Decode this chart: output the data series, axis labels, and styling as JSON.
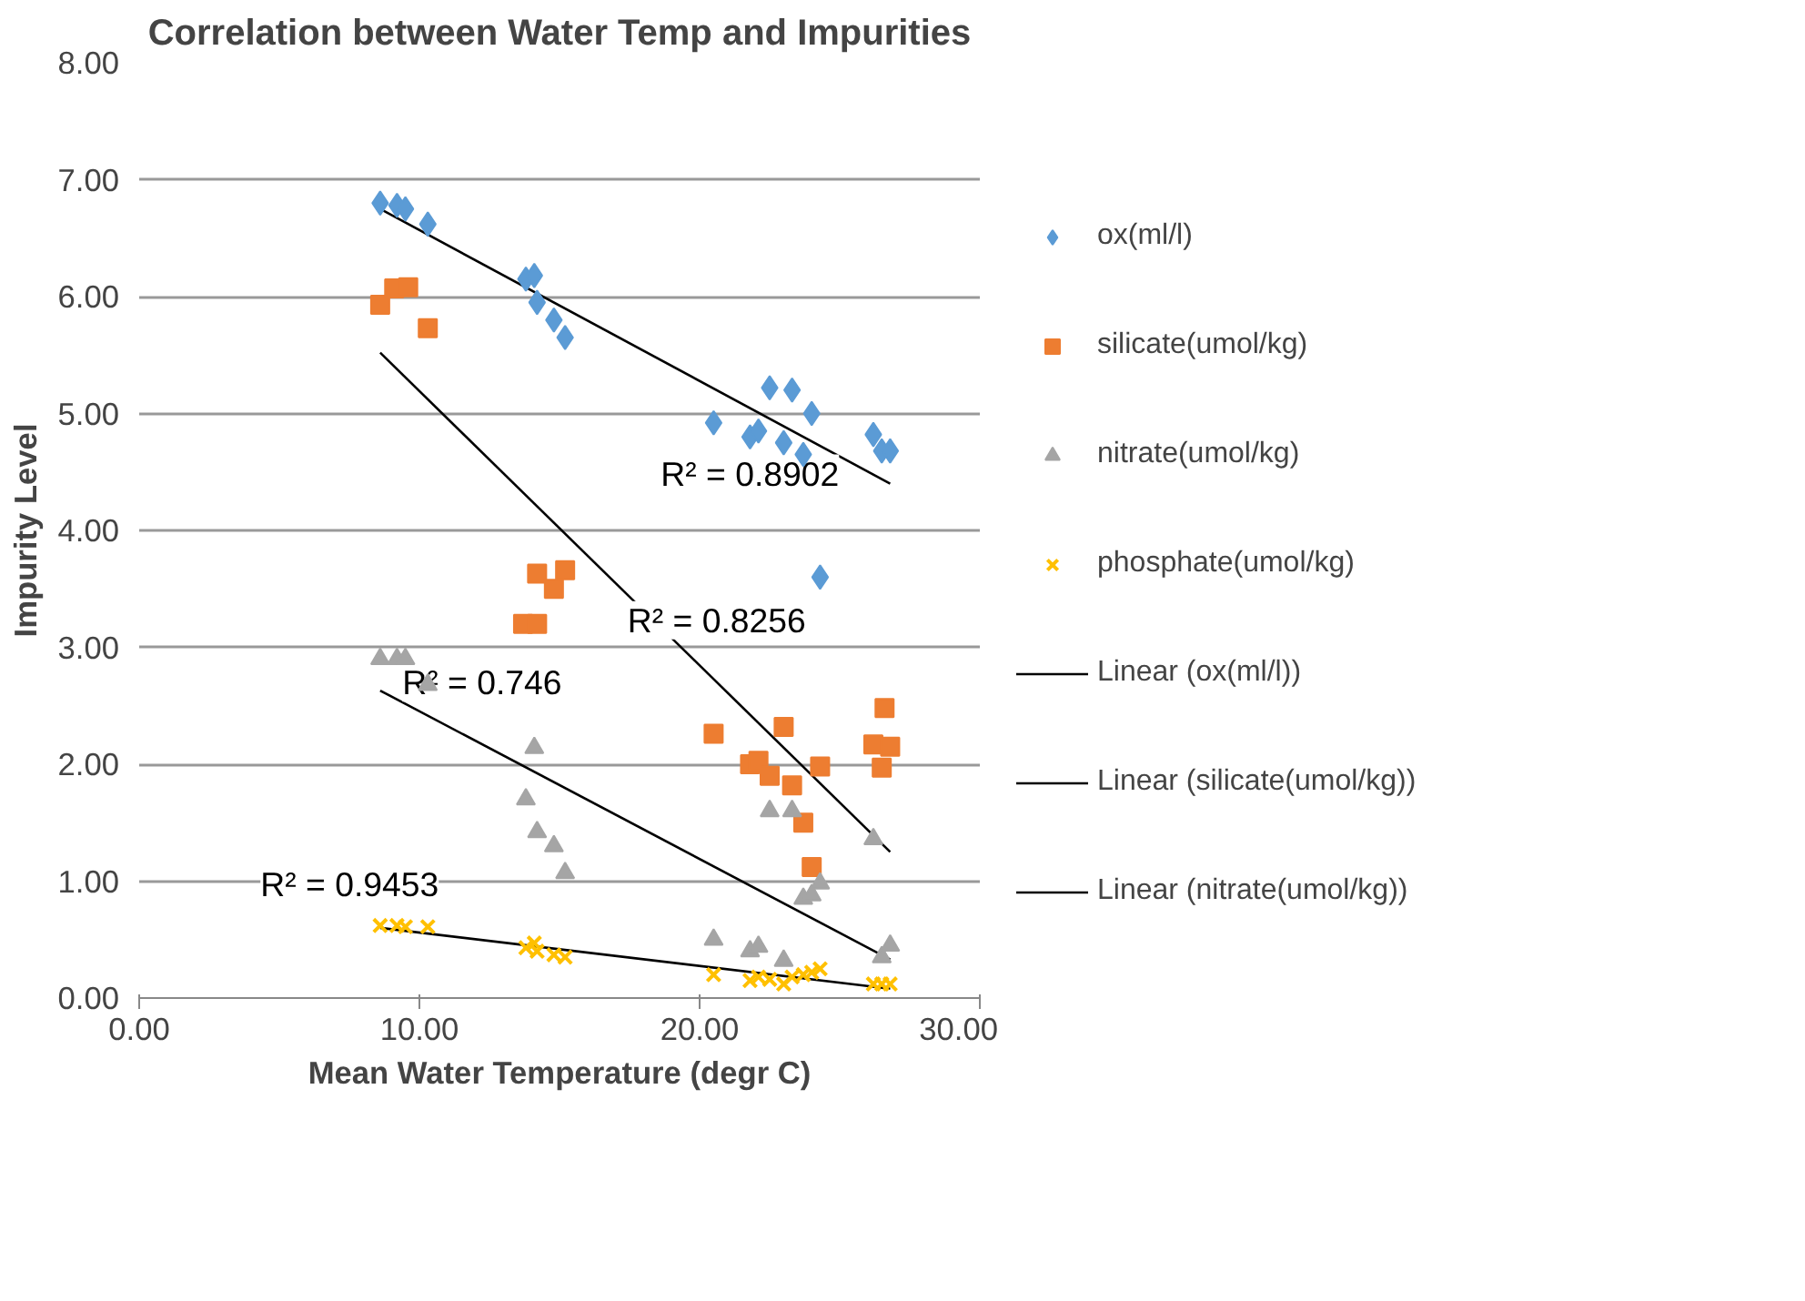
{
  "chart_data": {
    "type": "scatter",
    "title": "Correlation between Water Temp and Impurities",
    "xlabel": "Mean Water Temperature (degr C)",
    "ylabel": "Impurity Level",
    "xlim": [
      0,
      30
    ],
    "xticks": [
      {
        "value": 0,
        "label": "0.00"
      },
      {
        "value": 10,
        "label": "10.00"
      },
      {
        "value": 20,
        "label": "20.00"
      },
      {
        "value": 30,
        "label": "30.00"
      }
    ],
    "ylim": [
      0,
      8
    ],
    "yticks": [
      {
        "value": 0,
        "label": "0.00"
      },
      {
        "value": 1,
        "label": "1.00"
      },
      {
        "value": 2,
        "label": "2.00"
      },
      {
        "value": 3,
        "label": "3.00"
      },
      {
        "value": 4,
        "label": "4.00"
      },
      {
        "value": 5,
        "label": "5.00"
      },
      {
        "value": 6,
        "label": "6.00"
      },
      {
        "value": 7,
        "label": "7.00"
      },
      {
        "value": 8,
        "label": "8.00"
      }
    ],
    "grid": "y",
    "legend": "right",
    "series": [
      {
        "name": "ox(ml/l)",
        "color": "#5b9bd5",
        "marker": "diamond",
        "x": [
          8.6,
          9.2,
          9.5,
          10.3,
          13.8,
          14.1,
          14.2,
          14.8,
          15.2,
          20.5,
          21.8,
          22.1,
          22.5,
          23.0,
          23.3,
          23.7,
          24.0,
          24.3,
          26.2,
          26.5,
          26.8
        ],
        "values": [
          6.8,
          6.78,
          6.75,
          6.62,
          6.15,
          6.18,
          5.95,
          5.8,
          5.65,
          4.92,
          4.8,
          4.85,
          5.22,
          4.75,
          5.2,
          4.65,
          5.0,
          3.6,
          4.82,
          4.68,
          4.68
        ]
      },
      {
        "name": "silicate(umol/kg)",
        "color": "#ed7d31",
        "marker": "square",
        "x": [
          8.6,
          9.1,
          9.6,
          10.3,
          13.7,
          14.2,
          14.2,
          14.8,
          15.2,
          20.5,
          21.8,
          22.1,
          22.5,
          23.0,
          23.3,
          23.7,
          24.0,
          24.3,
          26.2,
          26.5,
          26.8,
          26.6
        ],
        "values": [
          5.93,
          6.07,
          6.08,
          5.73,
          3.2,
          3.2,
          3.63,
          3.5,
          3.66,
          2.26,
          2.0,
          2.03,
          1.9,
          2.32,
          1.82,
          1.5,
          1.12,
          1.98,
          2.17,
          1.97,
          2.15,
          2.48
        ]
      },
      {
        "name": "nitrate(umol/kg)",
        "color": "#a5a5a5",
        "marker": "triangle",
        "x": [
          8.6,
          9.2,
          9.5,
          10.3,
          13.8,
          14.1,
          14.2,
          14.8,
          15.2,
          20.5,
          21.8,
          22.1,
          22.5,
          23.0,
          23.3,
          23.7,
          24.0,
          24.3,
          26.2,
          26.5,
          26.8
        ],
        "values": [
          2.9,
          2.9,
          2.9,
          2.68,
          1.7,
          2.14,
          1.42,
          1.3,
          1.07,
          0.5,
          0.4,
          0.44,
          1.6,
          0.32,
          1.6,
          0.85,
          0.88,
          0.98,
          1.36,
          0.35,
          0.45
        ]
      },
      {
        "name": "phosphate(umol/kg)",
        "color": "#ffc000",
        "marker": "cross",
        "x": [
          8.6,
          9.2,
          9.5,
          10.3,
          13.8,
          14.1,
          14.2,
          14.8,
          15.2,
          20.5,
          21.8,
          22.1,
          22.5,
          23.0,
          23.3,
          23.7,
          24.0,
          24.3,
          26.2,
          26.5,
          26.8
        ],
        "values": [
          0.62,
          0.62,
          0.61,
          0.61,
          0.43,
          0.47,
          0.4,
          0.37,
          0.35,
          0.2,
          0.15,
          0.18,
          0.16,
          0.12,
          0.18,
          0.2,
          0.22,
          0.25,
          0.12,
          0.12,
          0.12
        ]
      },
      {
        "name": "Linear (ox(ml/l))",
        "type": "line",
        "color": "#000000",
        "x": [
          8.6,
          26.8
        ],
        "values": [
          6.75,
          4.4
        ]
      },
      {
        "name": "Linear (silicate(umol/kg))",
        "type": "line",
        "color": "#000000",
        "x": [
          8.6,
          26.8
        ],
        "values": [
          5.52,
          1.25
        ]
      },
      {
        "name": "Linear (nitrate(umol/kg))",
        "type": "line",
        "color": "#000000",
        "x": [
          8.6,
          26.8
        ],
        "values": [
          2.63,
          0.33
        ]
      },
      {
        "type": "line",
        "color": "#000000",
        "x": [
          8.6,
          26.8
        ],
        "values": [
          0.6,
          0.08
        ]
      }
    ],
    "annotations": [
      "R² = 0.8902",
      "R² = 0.8256",
      "R² = 0.746",
      "R² = 0.9453"
    ]
  }
}
